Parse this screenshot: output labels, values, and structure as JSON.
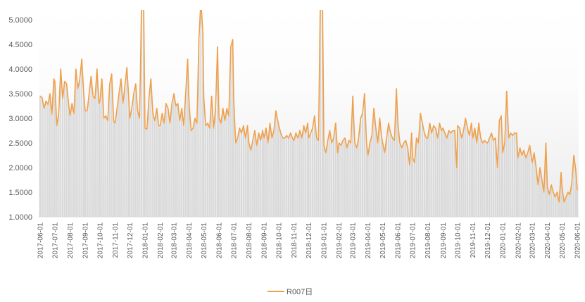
{
  "chart_data": {
    "type": "line",
    "x": [
      "2017-06-01",
      "2017-06-05",
      "2017-06-09",
      "2017-06-13",
      "2017-06-17",
      "2017-06-21",
      "2017-06-25",
      "2017-06-29",
      "2017-07-01",
      "2017-07-05",
      "2017-07-09",
      "2017-07-13",
      "2017-07-17",
      "2017-07-21",
      "2017-07-25",
      "2017-07-29",
      "2017-08-01",
      "2017-08-05",
      "2017-08-09",
      "2017-08-13",
      "2017-08-17",
      "2017-08-21",
      "2017-08-25",
      "2017-08-29",
      "2017-09-01",
      "2017-09-05",
      "2017-09-09",
      "2017-09-13",
      "2017-09-17",
      "2017-09-21",
      "2017-09-25",
      "2017-09-29",
      "2017-10-01",
      "2017-10-05",
      "2017-10-09",
      "2017-10-13",
      "2017-10-17",
      "2017-10-21",
      "2017-10-25",
      "2017-10-29",
      "2017-11-01",
      "2017-11-05",
      "2017-11-09",
      "2017-11-13",
      "2017-11-17",
      "2017-11-21",
      "2017-11-25",
      "2017-11-29",
      "2017-12-01",
      "2017-12-05",
      "2017-12-09",
      "2017-12-13",
      "2017-12-17",
      "2017-12-21",
      "2017-12-25",
      "2017-12-29",
      "2018-01-01",
      "2018-01-05",
      "2018-01-09",
      "2018-01-13",
      "2018-01-17",
      "2018-01-21",
      "2018-01-25",
      "2018-01-29",
      "2018-02-01",
      "2018-02-05",
      "2018-02-09",
      "2018-02-13",
      "2018-02-17",
      "2018-02-21",
      "2018-02-25",
      "2018-03-01",
      "2018-03-05",
      "2018-03-09",
      "2018-03-13",
      "2018-03-17",
      "2018-03-21",
      "2018-03-25",
      "2018-03-29",
      "2018-04-01",
      "2018-04-05",
      "2018-04-09",
      "2018-04-13",
      "2018-04-17",
      "2018-04-21",
      "2018-04-25",
      "2018-04-29",
      "2018-05-01",
      "2018-05-05",
      "2018-05-09",
      "2018-05-13",
      "2018-05-17",
      "2018-05-21",
      "2018-05-25",
      "2018-05-29",
      "2018-06-01",
      "2018-06-05",
      "2018-06-09",
      "2018-06-13",
      "2018-06-17",
      "2018-06-21",
      "2018-06-25",
      "2018-06-29",
      "2018-07-01",
      "2018-07-05",
      "2018-07-09",
      "2018-07-13",
      "2018-07-17",
      "2018-07-21",
      "2018-07-25",
      "2018-07-29",
      "2018-08-01",
      "2018-08-05",
      "2018-08-09",
      "2018-08-13",
      "2018-08-17",
      "2018-08-21",
      "2018-08-25",
      "2018-08-29",
      "2018-09-01",
      "2018-09-05",
      "2018-09-09",
      "2018-09-13",
      "2018-09-17",
      "2018-09-21",
      "2018-09-25",
      "2018-09-29",
      "2018-10-01",
      "2018-10-05",
      "2018-10-09",
      "2018-10-13",
      "2018-10-17",
      "2018-10-21",
      "2018-10-25",
      "2018-10-29",
      "2018-11-01",
      "2018-11-05",
      "2018-11-09",
      "2018-11-13",
      "2018-11-17",
      "2018-11-21",
      "2018-11-25",
      "2018-11-29",
      "2018-12-01",
      "2018-12-05",
      "2018-12-09",
      "2018-12-13",
      "2018-12-17",
      "2018-12-21",
      "2018-12-25",
      "2018-12-29",
      "2019-01-01",
      "2019-01-05",
      "2019-01-09",
      "2019-01-13",
      "2019-01-17",
      "2019-01-21",
      "2019-01-25",
      "2019-01-29",
      "2019-02-01",
      "2019-02-05",
      "2019-02-09",
      "2019-02-13",
      "2019-02-17",
      "2019-02-21",
      "2019-02-25",
      "2019-03-01",
      "2019-03-05",
      "2019-03-09",
      "2019-03-13",
      "2019-03-17",
      "2019-03-21",
      "2019-03-25",
      "2019-03-29",
      "2019-04-01",
      "2019-04-05",
      "2019-04-09",
      "2019-04-13",
      "2019-04-17",
      "2019-04-21",
      "2019-04-25",
      "2019-04-29",
      "2019-05-01",
      "2019-05-05",
      "2019-05-09",
      "2019-05-13",
      "2019-05-17",
      "2019-05-21",
      "2019-05-25",
      "2019-05-29",
      "2019-06-01",
      "2019-06-05",
      "2019-06-09",
      "2019-06-13",
      "2019-06-17",
      "2019-06-21",
      "2019-06-25",
      "2019-06-29",
      "2019-07-01",
      "2019-07-05",
      "2019-07-09",
      "2019-07-13",
      "2019-07-17",
      "2019-07-21",
      "2019-07-25",
      "2019-07-29",
      "2019-08-01",
      "2019-08-05",
      "2019-08-09",
      "2019-08-13",
      "2019-08-17",
      "2019-08-21",
      "2019-08-25",
      "2019-08-29",
      "2019-09-01",
      "2019-09-05",
      "2019-09-09",
      "2019-09-13",
      "2019-09-17",
      "2019-09-21",
      "2019-09-25",
      "2019-09-29",
      "2019-10-01",
      "2019-10-05",
      "2019-10-09",
      "2019-10-13",
      "2019-10-17",
      "2019-10-21",
      "2019-10-25",
      "2019-10-29",
      "2019-11-01",
      "2019-11-05",
      "2019-11-09",
      "2019-11-13",
      "2019-11-17",
      "2019-11-21",
      "2019-11-25",
      "2019-11-29",
      "2019-12-01",
      "2019-12-05",
      "2019-12-09",
      "2019-12-13",
      "2019-12-17",
      "2019-12-21",
      "2019-12-25",
      "2019-12-29",
      "2020-01-01",
      "2020-01-05",
      "2020-01-09",
      "2020-01-13",
      "2020-01-17",
      "2020-01-21",
      "2020-01-25",
      "2020-01-29",
      "2020-02-01",
      "2020-02-05",
      "2020-02-09",
      "2020-02-13",
      "2020-02-17",
      "2020-02-21",
      "2020-02-25",
      "2020-03-01",
      "2020-03-05",
      "2020-03-09",
      "2020-03-13",
      "2020-03-17",
      "2020-03-21",
      "2020-03-25",
      "2020-03-29",
      "2020-04-01",
      "2020-04-05",
      "2020-04-09",
      "2020-04-13",
      "2020-04-17",
      "2020-04-21",
      "2020-04-25",
      "2020-04-29",
      "2020-05-01",
      "2020-05-05",
      "2020-05-09",
      "2020-05-13",
      "2020-05-17",
      "2020-05-21",
      "2020-05-25",
      "2020-05-29",
      "2020-06-01"
    ],
    "series": [
      {
        "name": "R007日",
        "color": "#F0A04B",
        "bar_color": "#D9D9D9",
        "values": [
          3.45,
          3.42,
          3.2,
          3.35,
          3.28,
          3.5,
          3.08,
          3.8,
          3.75,
          2.85,
          3.1,
          4.0,
          3.4,
          3.75,
          3.7,
          3.3,
          3.05,
          3.3,
          3.1,
          4.0,
          3.6,
          3.8,
          4.2,
          3.5,
          3.15,
          3.15,
          3.5,
          3.85,
          3.45,
          3.4,
          4.0,
          3.3,
          3.35,
          3.8,
          3.0,
          3.05,
          2.95,
          3.7,
          3.9,
          2.95,
          2.9,
          3.2,
          3.5,
          3.8,
          3.3,
          3.65,
          4.03,
          3.4,
          3.0,
          3.2,
          3.5,
          3.7,
          3.15,
          3.0,
          5.4,
          5.6,
          2.8,
          2.78,
          3.4,
          3.8,
          3.1,
          2.95,
          3.2,
          2.85,
          2.85,
          3.1,
          2.9,
          3.3,
          3.2,
          2.9,
          3.3,
          3.5,
          3.25,
          3.3,
          2.95,
          3.2,
          2.85,
          3.5,
          4.2,
          3.3,
          2.75,
          2.8,
          3.0,
          2.9,
          4.6,
          5.4,
          4.75,
          3.4,
          2.85,
          2.9,
          2.8,
          3.45,
          2.8,
          3.2,
          4.45,
          3.0,
          2.9,
          3.2,
          2.95,
          3.2,
          3.05,
          4.45,
          4.6,
          3.4,
          2.5,
          2.6,
          2.8,
          2.7,
          2.85,
          2.6,
          2.85,
          2.5,
          2.35,
          2.55,
          2.75,
          2.45,
          2.7,
          2.55,
          2.75,
          2.6,
          2.8,
          2.5,
          2.9,
          2.6,
          2.75,
          3.15,
          2.95,
          2.85,
          2.7,
          2.6,
          2.6,
          2.65,
          2.6,
          2.7,
          2.6,
          2.55,
          2.7,
          2.6,
          2.75,
          2.6,
          2.85,
          2.7,
          2.9,
          2.6,
          2.7,
          2.8,
          3.05,
          2.6,
          2.55,
          5.6,
          5.6,
          2.45,
          2.3,
          2.55,
          2.75,
          2.5,
          2.6,
          2.9,
          2.3,
          2.5,
          2.45,
          2.55,
          2.6,
          2.4,
          2.55,
          2.5,
          3.45,
          2.5,
          2.4,
          2.6,
          3.0,
          3.1,
          3.5,
          2.5,
          2.25,
          2.5,
          2.65,
          3.2,
          2.8,
          2.5,
          3.0,
          2.6,
          2.5,
          2.3,
          2.6,
          2.9,
          2.7,
          2.6,
          2.55,
          3.6,
          2.9,
          2.5,
          2.4,
          2.5,
          2.55,
          2.4,
          2.05,
          2.7,
          2.2,
          2.1,
          2.6,
          2.5,
          3.1,
          2.9,
          2.7,
          2.6,
          2.6,
          2.9,
          2.7,
          2.85,
          2.8,
          2.6,
          2.9,
          2.75,
          2.8,
          2.7,
          2.6,
          2.75,
          2.7,
          2.75,
          2.75,
          2.0,
          2.85,
          2.8,
          2.6,
          2.75,
          3.0,
          2.8,
          2.65,
          2.9,
          2.6,
          2.8,
          2.5,
          2.9,
          2.6,
          2.5,
          2.55,
          2.5,
          2.5,
          2.6,
          2.7,
          2.55,
          2.6,
          2.0,
          2.95,
          3.05,
          2.3,
          2.5,
          3.55,
          2.6,
          2.7,
          2.65,
          2.7,
          2.7,
          2.2,
          2.4,
          2.25,
          2.35,
          2.2,
          2.3,
          2.45,
          2.1,
          2.3,
          2.0,
          1.65,
          2.0,
          1.75,
          1.5,
          2.5,
          1.6,
          1.45,
          1.65,
          1.5,
          1.4,
          1.5,
          1.3,
          1.9,
          1.6,
          1.3,
          1.4,
          1.5,
          1.45,
          1.7,
          2.25,
          1.95,
          1.55
        ]
      }
    ],
    "xlim": [
      "2017-06-01",
      "2020-06-01"
    ],
    "ylim": [
      1.0,
      5.2
    ],
    "y_ticks": [
      "1.0000",
      "1.5000",
      "2.0000",
      "2.5000",
      "3.0000",
      "3.5000",
      "4.0000",
      "4.5000",
      "5.0000"
    ],
    "x_ticks": [
      "2017-06-01",
      "2017-07-01",
      "2017-08-01",
      "2017-09-01",
      "2017-10-01",
      "2017-11-01",
      "2017-12-01",
      "2018-01-01",
      "2018-02-01",
      "2018-03-01",
      "2018-04-01",
      "2018-05-01",
      "2018-06-01",
      "2018-07-01",
      "2018-08-01",
      "2018-09-01",
      "2018-10-01",
      "2018-11-01",
      "2018-12-01",
      "2019-01-01",
      "2019-02-01",
      "2019-03-01",
      "2019-04-01",
      "2019-05-01",
      "2019-06-01",
      "2019-07-01",
      "2019-08-01",
      "2019-09-01",
      "2019-10-01",
      "2019-11-01",
      "2019-12-01",
      "2020-01-01",
      "2020-02-01",
      "2020-03-01",
      "2020-04-01",
      "2020-05-01",
      "2020-06-01"
    ],
    "grid": false,
    "legend": "bottom"
  }
}
